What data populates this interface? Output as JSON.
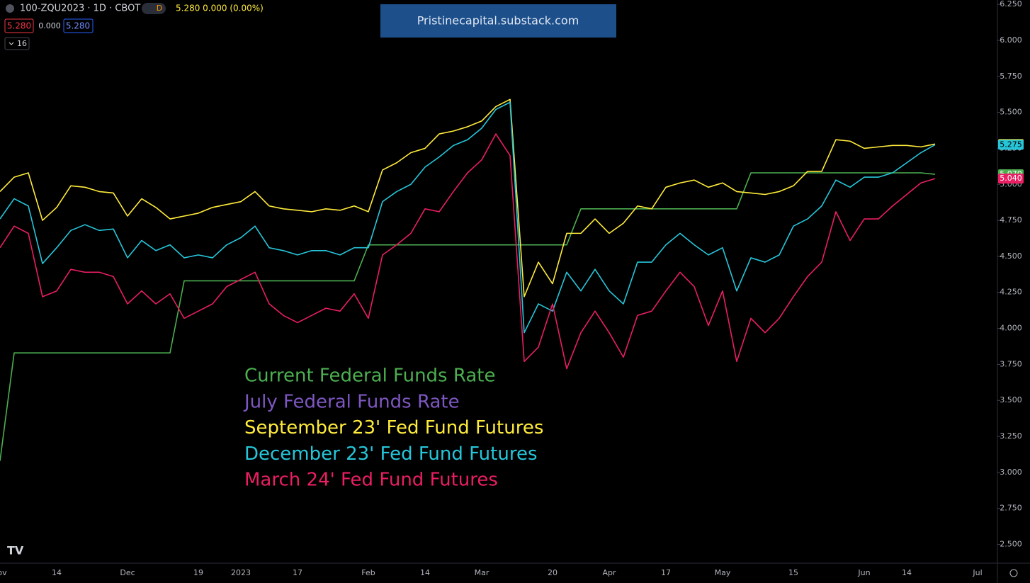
{
  "chart_data": {
    "type": "line",
    "symbol": "100-ZQU2023 · 1D · CBOT",
    "interval_badge": "D",
    "quote": "5.280 0.000 (0.00%)",
    "bid": "5.280",
    "change": "0.000",
    "ask": "5.280",
    "indicator_count": "16",
    "watermark": "Pristinecapital.substack.com",
    "logo": "TV",
    "grid": false,
    "ylim": [
      2.37,
      6.28
    ],
    "yticks": [
      {
        "value": 2.5,
        "label": "2.500"
      },
      {
        "value": 2.75,
        "label": "2.750"
      },
      {
        "value": 3,
        "label": "3.000"
      },
      {
        "value": 3.25,
        "label": "3.250"
      },
      {
        "value": 3.5,
        "label": "3.500"
      },
      {
        "value": 3.75,
        "label": "3.750"
      },
      {
        "value": 4,
        "label": "4.000"
      },
      {
        "value": 4.25,
        "label": "4.250"
      },
      {
        "value": 4.5,
        "label": "4.500"
      },
      {
        "value": 4.75,
        "label": "4.750"
      },
      {
        "value": 5,
        "label": "5.000"
      },
      {
        "value": 5.25,
        "label": "5.250"
      },
      {
        "value": 5.5,
        "label": "5.500"
      },
      {
        "value": 5.75,
        "label": "5.750"
      },
      {
        "value": 6,
        "label": "6.000"
      },
      {
        "value": 6.25,
        "label": "6.250"
      }
    ],
    "categories": [
      "ov",
      null,
      null,
      null,
      "14",
      null,
      null,
      null,
      null,
      "Dec",
      null,
      null,
      null,
      null,
      "19",
      null,
      null,
      "2023",
      null,
      null,
      null,
      "17",
      null,
      null,
      null,
      null,
      "Feb",
      null,
      null,
      null,
      "14",
      null,
      null,
      null,
      "Mar",
      null,
      null,
      null,
      null,
      "20",
      null,
      null,
      null,
      "Apr",
      null,
      null,
      null,
      "17",
      null,
      null,
      null,
      "May",
      null,
      null,
      null,
      null,
      "15",
      null,
      null,
      null,
      null,
      "Jun",
      null,
      null,
      "14",
      null,
      null,
      null,
      null,
      "Jul"
    ],
    "series": [
      {
        "name": "Current Federal Funds Rate",
        "color": "#4caf50",
        "last_label": "5.070",
        "values": [
          3.08,
          3.83,
          3.83,
          3.83,
          3.83,
          3.83,
          3.83,
          3.83,
          3.83,
          3.83,
          3.83,
          3.83,
          3.83,
          4.33,
          4.33,
          4.33,
          4.33,
          4.33,
          4.33,
          4.33,
          4.33,
          4.33,
          4.33,
          4.33,
          4.33,
          4.33,
          4.58,
          4.58,
          4.58,
          4.58,
          4.58,
          4.58,
          4.58,
          4.58,
          4.58,
          4.58,
          4.58,
          4.58,
          4.58,
          4.58,
          4.58,
          4.83,
          4.83,
          4.83,
          4.83,
          4.83,
          4.83,
          4.83,
          4.83,
          4.83,
          4.83,
          4.83,
          4.83,
          5.08,
          5.08,
          5.08,
          5.08,
          5.08,
          5.08,
          5.08,
          5.08,
          5.08,
          5.08,
          5.08,
          5.08,
          5.08,
          5.07,
          null,
          null,
          null
        ]
      },
      {
        "name": "July Federal Funds Rate",
        "color": "#7e57c2",
        "values": [
          null,
          null,
          null,
          null,
          null,
          null,
          null,
          null,
          null,
          null,
          null,
          null,
          null,
          null,
          null,
          null,
          null,
          null,
          null,
          null,
          null,
          null,
          null,
          null,
          null,
          null,
          null,
          null,
          null,
          null,
          null,
          null,
          null,
          null,
          null,
          null,
          null,
          null,
          null,
          null,
          null,
          null,
          null,
          null,
          null,
          null,
          null,
          null,
          null,
          null,
          null,
          null,
          null,
          null,
          null,
          null,
          null,
          null,
          null,
          null,
          null,
          null,
          null,
          null,
          null,
          null,
          null,
          null,
          null,
          null
        ]
      },
      {
        "name": "September 23' Fed Fund Futures",
        "color": "#ffeb3b",
        "last_label": "5.280",
        "values": [
          4.95,
          5.05,
          5.08,
          4.75,
          4.84,
          4.99,
          4.98,
          4.95,
          4.94,
          4.78,
          4.9,
          4.84,
          4.76,
          4.78,
          4.8,
          4.84,
          4.86,
          4.88,
          4.95,
          4.85,
          4.83,
          4.82,
          4.81,
          4.83,
          4.82,
          4.85,
          4.81,
          5.1,
          5.15,
          5.22,
          5.25,
          5.35,
          5.37,
          5.4,
          5.44,
          5.54,
          5.59,
          4.22,
          4.46,
          4.31,
          4.66,
          4.66,
          4.76,
          4.66,
          4.73,
          4.85,
          4.83,
          4.98,
          5.01,
          5.03,
          4.98,
          5.01,
          4.95,
          4.94,
          4.93,
          4.95,
          4.99,
          5.09,
          5.09,
          5.31,
          5.3,
          5.25,
          5.26,
          5.27,
          5.27,
          5.26,
          5.28,
          null,
          null,
          null
        ]
      },
      {
        "name": "December 23' Fed Fund Futures",
        "color": "#26c6da",
        "last_label": "5.275",
        "values": [
          4.76,
          4.9,
          4.85,
          4.45,
          4.56,
          4.68,
          4.72,
          4.68,
          4.69,
          4.49,
          4.61,
          4.54,
          4.58,
          4.49,
          4.51,
          4.49,
          4.58,
          4.63,
          4.71,
          4.56,
          4.54,
          4.51,
          4.54,
          4.54,
          4.51,
          4.56,
          4.56,
          4.88,
          4.95,
          5.0,
          5.12,
          5.19,
          5.27,
          5.31,
          5.39,
          5.52,
          5.57,
          3.97,
          4.17,
          4.12,
          4.39,
          4.26,
          4.41,
          4.26,
          4.17,
          4.46,
          4.46,
          4.58,
          4.66,
          4.58,
          4.51,
          4.56,
          4.26,
          4.49,
          4.46,
          4.51,
          4.71,
          4.76,
          4.85,
          5.03,
          4.98,
          5.05,
          5.05,
          5.08,
          5.15,
          5.22,
          5.275,
          null,
          null,
          null
        ]
      },
      {
        "name": "March 24' Fed Fund Futures",
        "color": "#e91e63",
        "last_label": "5.040",
        "values": [
          4.56,
          4.71,
          4.66,
          4.22,
          4.26,
          4.41,
          4.39,
          4.39,
          4.36,
          4.17,
          4.26,
          4.17,
          4.24,
          4.07,
          4.12,
          4.17,
          4.29,
          4.34,
          4.39,
          4.17,
          4.09,
          4.04,
          4.09,
          4.14,
          4.12,
          4.24,
          4.07,
          4.51,
          4.58,
          4.66,
          4.83,
          4.81,
          4.95,
          5.08,
          5.17,
          5.35,
          5.2,
          3.77,
          3.87,
          4.17,
          3.72,
          3.97,
          4.12,
          3.97,
          3.8,
          4.09,
          4.12,
          4.26,
          4.39,
          4.29,
          4.02,
          4.26,
          3.77,
          4.07,
          3.97,
          4.07,
          4.22,
          4.36,
          4.46,
          4.81,
          4.61,
          4.76,
          4.76,
          4.85,
          4.93,
          5.01,
          5.04,
          null,
          null,
          null
        ]
      }
    ]
  }
}
